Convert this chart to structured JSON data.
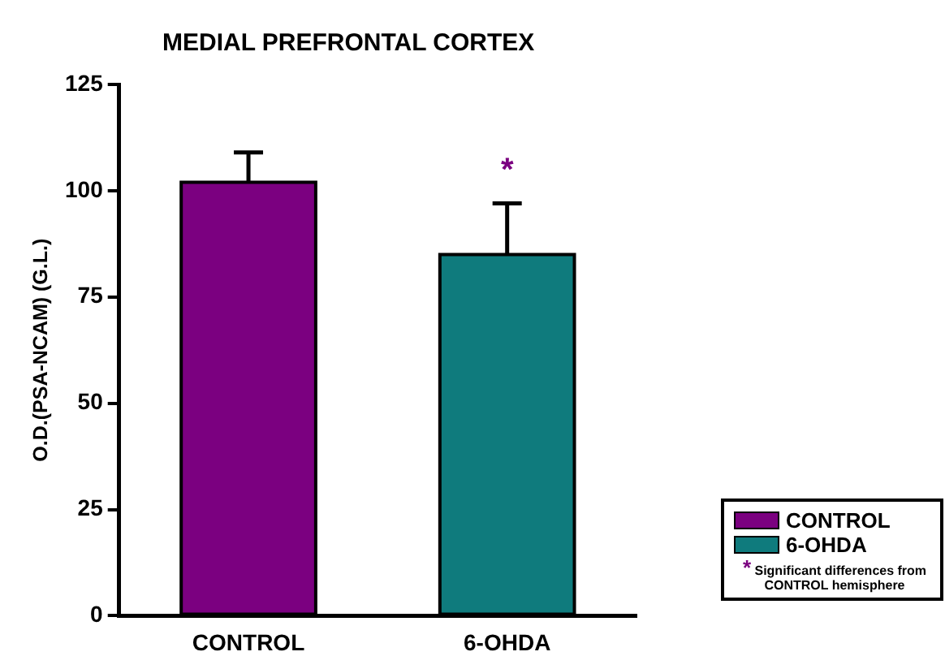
{
  "chart_data": {
    "type": "bar",
    "title": "MEDIAL PREFRONTAL CORTEX",
    "ylabel": "O.D.(PSA-NCAM) (G.L.)",
    "categories": [
      "CONTROL",
      "6-OHDA"
    ],
    "series": [
      {
        "name": "CONTROL",
        "color": "#7b0080",
        "values": [
          102,
          null
        ],
        "errors": [
          7,
          null
        ]
      },
      {
        "name": "6-OHDA",
        "color": "#0f7b7d",
        "values": [
          null,
          85
        ],
        "errors": [
          null,
          12
        ]
      }
    ],
    "ylim": [
      0,
      125
    ],
    "yticks": [
      0,
      25,
      50,
      75,
      100,
      125
    ],
    "grid": false,
    "legend": "bottom right",
    "annotations": [
      "*",
      "* Significant differences from CONTROL hemisphere"
    ]
  }
}
